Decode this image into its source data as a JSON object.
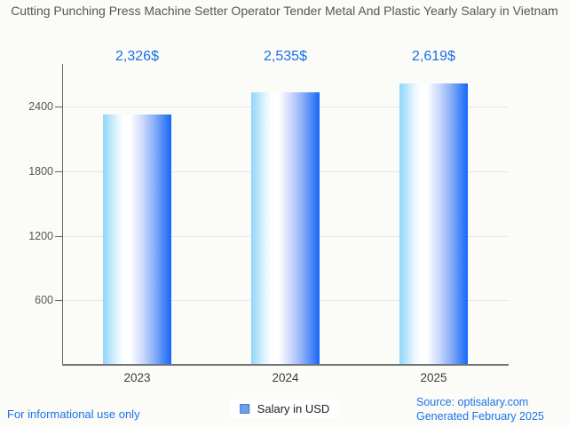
{
  "title": "Cutting Punching Press Machine Setter Operator Tender Metal And Plastic Yearly Salary in Vietnam",
  "chart_data": {
    "type": "bar",
    "title": "Cutting Punching Press Machine Setter Operator Tender Metal And Plastic Yearly Salary in Vietnam",
    "categories": [
      "2023",
      "2024",
      "2025"
    ],
    "series": [
      {
        "name": "Salary in USD",
        "values": [
          2326,
          2535,
          2619
        ],
        "value_labels": [
          "2,326$",
          "2,535$",
          "2,619$"
        ]
      }
    ],
    "xlabel": "",
    "ylabel": "",
    "ylim": [
      0,
      2800
    ],
    "yticks": [
      600,
      1200,
      1800,
      2400
    ],
    "grid": true,
    "legend_position": "bottom"
  },
  "legend": {
    "label": "Salary in USD"
  },
  "footer": {
    "left": "For informational use only",
    "source": "Source: optisalary.com",
    "generated": "Generated February 2025"
  },
  "colors": {
    "background": "#fbfbf8",
    "title_text": "#565656",
    "value_label_blue": "#1b6fe8",
    "footer_blue": "#1a73e8",
    "bar_gradient": [
      "#8fd6fa",
      "#ffffff",
      "#1466fb"
    ],
    "legend_marker_fill": "#6d9eeb",
    "legend_marker_border": "#4a7ebf",
    "axis_line": "#666666",
    "baseline": "#757575",
    "gridline": "#e7e7e7"
  }
}
